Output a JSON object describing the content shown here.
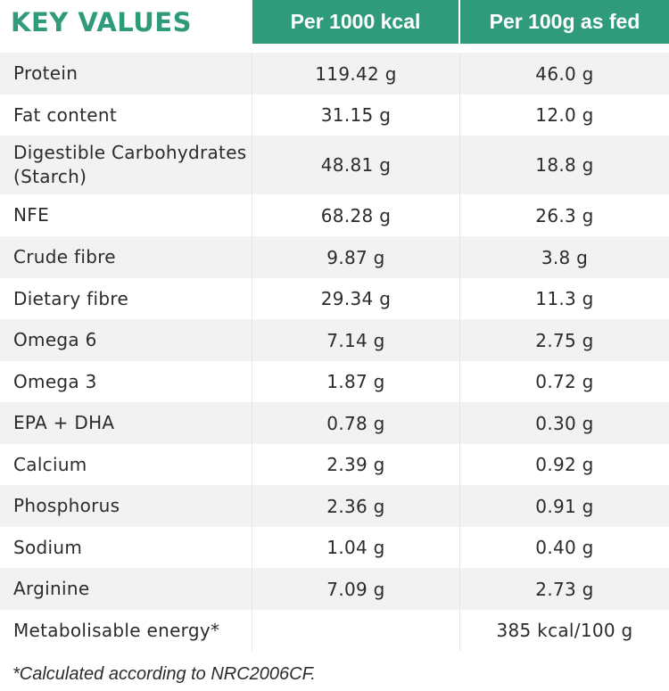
{
  "header": {
    "title": "KEY VALUES",
    "col1": "Per 1000 kcal",
    "col2": "Per 100g as fed"
  },
  "rows": [
    {
      "label": "Protein",
      "per1000": "119.42 g",
      "per100": "46.0 g"
    },
    {
      "label": "Fat content",
      "per1000": "31.15 g",
      "per100": "12.0 g"
    },
    {
      "label": "Digestible Carbohydrates (Starch)",
      "per1000": "48.81 g",
      "per100": "18.8 g"
    },
    {
      "label": "NFE",
      "per1000": "68.28 g",
      "per100": "26.3 g"
    },
    {
      "label": "Crude fibre",
      "per1000": "9.87 g",
      "per100": "3.8 g"
    },
    {
      "label": "Dietary fibre",
      "per1000": "29.34 g",
      "per100": "11.3 g"
    },
    {
      "label": "Omega 6",
      "per1000": "7.14 g",
      "per100": "2.75 g"
    },
    {
      "label": "Omega 3",
      "per1000": "1.87 g",
      "per100": "0.72 g"
    },
    {
      "label": "EPA + DHA",
      "per1000": "0.78 g",
      "per100": "0.30 g"
    },
    {
      "label": "Calcium",
      "per1000": "2.39 g",
      "per100": "0.92 g"
    },
    {
      "label": "Phosphorus",
      "per1000": "2.36 g",
      "per100": "0.91 g"
    },
    {
      "label": "Sodium",
      "per1000": "1.04 g",
      "per100": "0.40 g"
    },
    {
      "label": "Arginine",
      "per1000": "7.09 g",
      "per100": "2.73 g"
    },
    {
      "label": "Metabolisable energy*",
      "per1000": "",
      "per100": "385 kcal/100 g"
    }
  ],
  "footnote": "*Calculated according to NRC2006CF.",
  "colors": {
    "accent": "#2f9b7b",
    "row_shade": "#f2f2f2"
  }
}
